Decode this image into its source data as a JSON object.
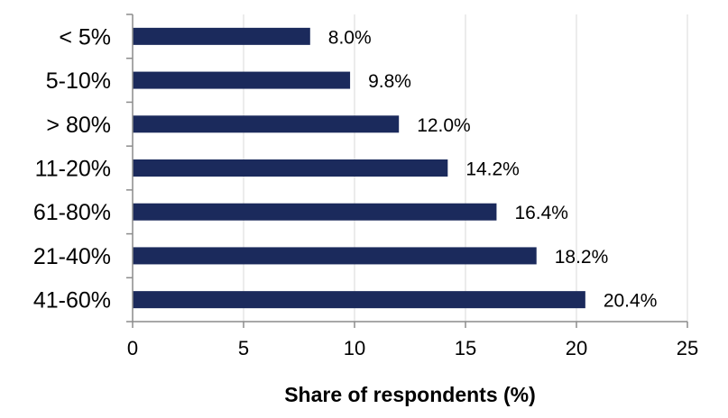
{
  "chart_data": {
    "type": "bar",
    "orientation": "horizontal",
    "categories": [
      "< 5%",
      "5-10%",
      "> 80%",
      "11-20%",
      "61-80%",
      "21-40%",
      "41-60%"
    ],
    "values": [
      8.0,
      9.8,
      12.0,
      14.2,
      16.4,
      18.2,
      20.4
    ],
    "value_labels": [
      "8.0%",
      "9.8%",
      "12.0%",
      "14.2%",
      "16.4%",
      "18.2%",
      "20.4%"
    ],
    "xlabel": "Share of respondents (%)",
    "xlim": [
      0,
      25
    ],
    "xticks": [
      0,
      5,
      10,
      15,
      20,
      25
    ],
    "xtick_labels": [
      "0",
      "5",
      "10",
      "15",
      "20",
      "25"
    ],
    "grid": "vertical",
    "legend": "none",
    "bar_color": "#1b2a5c"
  }
}
